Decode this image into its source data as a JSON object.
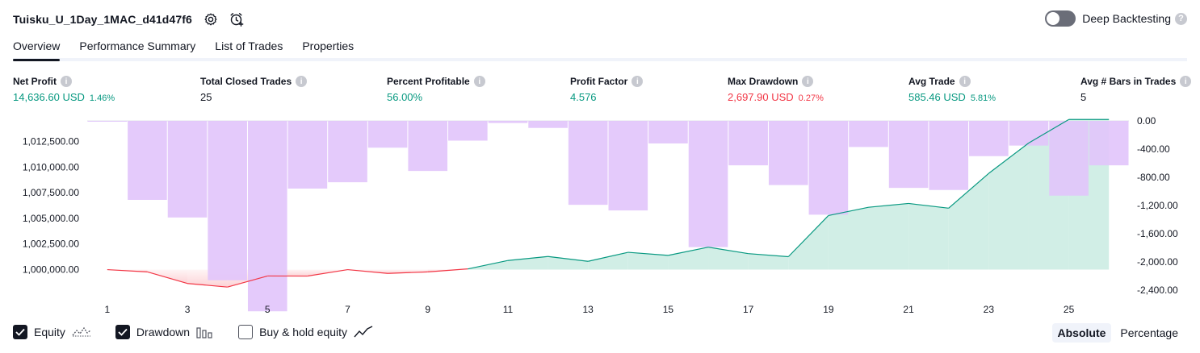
{
  "header": {
    "strategy_name": "Tuisku_U_1Day_1MAC_d41d47f6",
    "deep_backtesting_label": "Deep Backtesting",
    "deep_backtesting_enabled": false,
    "icons": [
      "settings-icon",
      "alarm-add-icon"
    ]
  },
  "tabs": [
    {
      "label": "Overview",
      "active": true
    },
    {
      "label": "Performance Summary",
      "active": false
    },
    {
      "label": "List of Trades",
      "active": false
    },
    {
      "label": "Properties",
      "active": false
    }
  ],
  "metrics": {
    "net_profit": {
      "label": "Net Profit",
      "value": "14,636.60 USD",
      "sub": "1.46%"
    },
    "total_closed_trades": {
      "label": "Total Closed Trades",
      "value": "25"
    },
    "percent_profitable": {
      "label": "Percent Profitable",
      "value": "56.00%"
    },
    "profit_factor": {
      "label": "Profit Factor",
      "value": "4.576"
    },
    "max_drawdown": {
      "label": "Max Drawdown",
      "value": "2,697.90 USD",
      "sub": "0.27%"
    },
    "avg_trade": {
      "label": "Avg Trade",
      "value": "585.46 USD",
      "sub": "5.81%"
    },
    "avg_bars": {
      "label": "Avg # Bars in Trades",
      "value": "5"
    }
  },
  "colors": {
    "green": "#089981",
    "red": "#f23645",
    "drawdown_bar": "#e1c4fb",
    "equity_fill": "#d1eee6",
    "accent": "#131722"
  },
  "chart_data": {
    "type": "area",
    "x": [
      1,
      2,
      3,
      4,
      5,
      6,
      7,
      8,
      9,
      10,
      11,
      12,
      13,
      14,
      15,
      16,
      17,
      18,
      19,
      20,
      21,
      22,
      23,
      24,
      25,
      26
    ],
    "x_tick_labels": [
      "1",
      "3",
      "5",
      "7",
      "9",
      "11",
      "13",
      "15",
      "17",
      "19",
      "21",
      "23",
      "25"
    ],
    "left_axis": {
      "ylim": [
        998000,
        1014500
      ],
      "tick_labels": [
        "1,000,000.00",
        "1,002,500.00",
        "1,005,000.00",
        "1,007,500.00",
        "1,010,000.00",
        "1,012,500.00"
      ]
    },
    "right_axis": {
      "ylim": [
        -2400,
        0
      ],
      "tick_labels": [
        "0.00",
        "-400.00",
        "-800.00",
        "-1,200.00",
        "-1,600.00",
        "-2,000.00",
        "-2,400.00"
      ]
    },
    "series": [
      {
        "name": "Equity",
        "axis": "left",
        "values": [
          1000000,
          999780,
          998650,
          998300,
          999380,
          999370,
          1000000,
          999630,
          999780,
          1000070,
          1000890,
          1001280,
          1000810,
          1001690,
          1001390,
          1002190,
          1001560,
          1001260,
          1005270,
          1006080,
          1006450,
          1005990,
          1009380,
          1012350,
          1014640,
          1014640
        ]
      },
      {
        "name": "Drawdown",
        "axis": "right",
        "values": [
          -10,
          -1120,
          -1370,
          -2260,
          -2700,
          -960,
          -870,
          -380,
          -710,
          -280,
          -30,
          -100,
          -1190,
          -1270,
          -320,
          -1790,
          -630,
          -910,
          -1330,
          -370,
          -950,
          -980,
          -500,
          -350,
          -1060,
          -630
        ]
      }
    ]
  },
  "legend": {
    "equity": {
      "label": "Equity",
      "checked": true
    },
    "drawdown": {
      "label": "Drawdown",
      "checked": true
    },
    "buy_hold": {
      "label": "Buy & hold equity",
      "checked": false
    }
  },
  "mode": {
    "absolute": "Absolute",
    "percentage": "Percentage",
    "selected": "Absolute"
  }
}
